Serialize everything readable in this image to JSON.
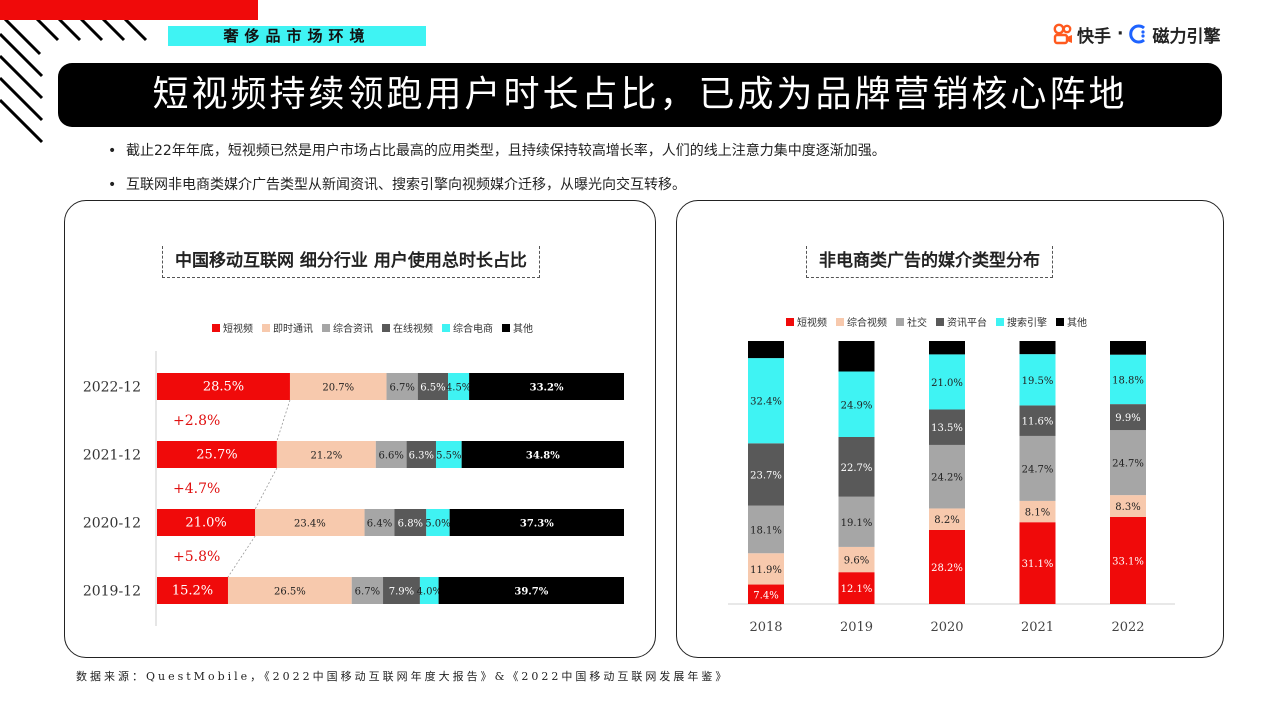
{
  "header": {
    "section_tag": "奢侈品市场环境",
    "brand_primary": "快手",
    "brand_separator": "·",
    "brand_secondary": "磁力引擎",
    "brand_logo_icons": [
      "kuaishou-logo-icon",
      "cili-engine-logo-icon"
    ]
  },
  "title": "短视频持续领跑用户时长占比，已成为品牌营销核心阵地",
  "bullets": [
    "截止22年年底，短视频已然是用户市场占比最高的应用类型，且持续保持较高增长率，人们的线上注意力集中度逐渐加强。",
    "互联网非电商类媒介广告类型从新闻资讯、搜索引擎向视频媒介迁移，从曝光向交互转移。"
  ],
  "colors": {
    "accent_red": "#f00a0a",
    "accent_cyan": "#3ff3f3",
    "black": "#000000"
  },
  "source": "数据来源：QuestMobile，《2022中国移动互联网年度大报告》&《2022中国移动互联网发展年鉴》",
  "chart_data": [
    {
      "type": "bar",
      "orientation": "horizontal",
      "stacked": true,
      "percent_stacked": true,
      "title": "中国移动互联网 细分行业 用户使用总时长占比",
      "legend_position": "top",
      "categories": [
        "2022-12",
        "2021-12",
        "2020-12",
        "2019-12"
      ],
      "series": [
        {
          "name": "短视频",
          "color": "#f00a0a",
          "values": [
            28.5,
            25.7,
            21.0,
            15.2
          ],
          "labels": [
            "28.5%",
            "25.7%",
            "21.0%",
            "15.2%"
          ]
        },
        {
          "name": "即时通讯",
          "color": "#f7c9ad",
          "values": [
            20.7,
            21.2,
            23.4,
            26.5
          ],
          "labels": [
            "20.7%",
            "21.2%",
            "23.4%",
            "26.5%"
          ]
        },
        {
          "name": "综合资讯",
          "color": "#a6a6a6",
          "values": [
            6.7,
            6.6,
            6.4,
            6.7
          ],
          "labels": [
            "6.7%",
            "6.6%",
            "6.4%",
            "6.7%"
          ]
        },
        {
          "name": "在线视频",
          "color": "#595959",
          "values": [
            6.5,
            6.3,
            6.8,
            7.9
          ],
          "labels": [
            "6.5%",
            "6.3%",
            "6.8%",
            "7.9%"
          ]
        },
        {
          "name": "综合电商",
          "color": "#3ff3f3",
          "values": [
            4.5,
            5.5,
            5.0,
            4.0
          ],
          "labels": [
            "4.5%",
            "5.5%",
            "5.0%",
            "4.0%"
          ]
        },
        {
          "name": "其他",
          "color": "#000000",
          "values": [
            33.2,
            34.8,
            37.3,
            39.7
          ],
          "labels": [
            "33.2%",
            "34.8%",
            "37.3%",
            "39.7%"
          ]
        }
      ],
      "growth_annotations": [
        "+2.8%",
        "+4.7%",
        "+5.8%"
      ]
    },
    {
      "type": "bar",
      "orientation": "vertical",
      "stacked": true,
      "percent_stacked": true,
      "title": "非电商类广告的媒介类型分布",
      "legend_position": "top",
      "categories": [
        "2018",
        "2019",
        "2020",
        "2021",
        "2022"
      ],
      "series": [
        {
          "name": "短视频",
          "color": "#f00a0a",
          "values": [
            7.4,
            12.1,
            28.2,
            31.1,
            33.1
          ],
          "labels": [
            "7.4%",
            "12.1%",
            "28.2%",
            "31.1%",
            "33.1%"
          ]
        },
        {
          "name": "综合视频",
          "color": "#f7c9ad",
          "values": [
            11.9,
            9.6,
            8.2,
            8.1,
            8.3
          ],
          "labels": [
            "11.9%",
            "9.6%",
            "8.2%",
            "8.1%",
            "8.3%"
          ]
        },
        {
          "name": "社交",
          "color": "#a6a6a6",
          "values": [
            18.1,
            19.1,
            24.2,
            24.7,
            24.7
          ],
          "labels": [
            "18.1%",
            "19.1%",
            "24.2%",
            "24.7%",
            "24.7%"
          ]
        },
        {
          "name": "资讯平台",
          "color": "#595959",
          "values": [
            23.7,
            22.7,
            13.5,
            11.6,
            9.9
          ],
          "labels": [
            "23.7%",
            "22.7%",
            "13.5%",
            "11.6%",
            "9.9%"
          ]
        },
        {
          "name": "搜索引擎",
          "color": "#3ff3f3",
          "values": [
            32.4,
            24.9,
            21.0,
            19.5,
            18.8
          ],
          "labels": [
            "32.4%",
            "24.9%",
            "21.0%",
            "19.5%",
            "18.8%"
          ]
        },
        {
          "name": "其他",
          "color": "#000000",
          "values": [
            6.5,
            11.6,
            5.1,
            5.0,
            5.2
          ],
          "labels": [
            "",
            "",
            "",
            "",
            ""
          ]
        }
      ]
    }
  ]
}
